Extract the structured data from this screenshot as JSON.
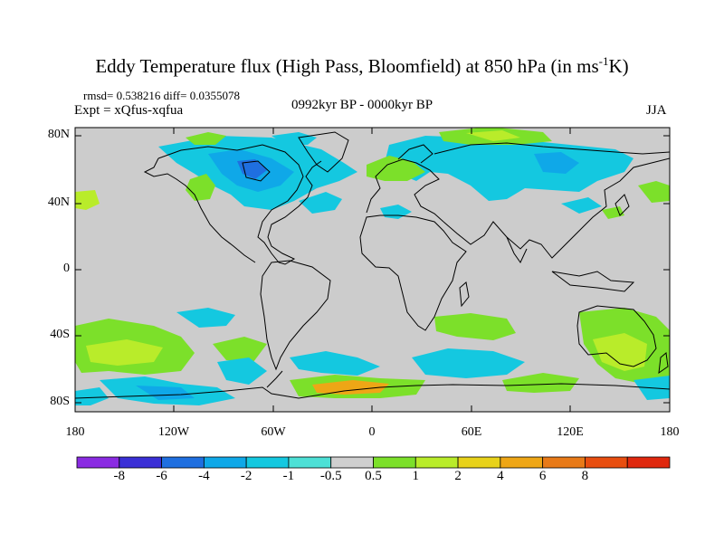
{
  "title": {
    "main": "Eddy Temperature flux (High Pass, Bloomfield) at 850 hPa (in ms",
    "sup": "-1",
    "tail": "K)"
  },
  "stats_line": "rmsd= 0.538216 diff= 0.0355078",
  "expt_line": "Expt = xQfus-xqfua",
  "period_line": "0992kyr BP - 0000kyr BP",
  "season": "JJA",
  "axes": {
    "y_ticks": [
      "80N",
      "40N",
      "0",
      "40S",
      "80S"
    ],
    "x_ticks": [
      "180",
      "120W",
      "60W",
      "0",
      "60E",
      "120E",
      "180"
    ]
  },
  "colorbar": {
    "colors": [
      "#8a2be2",
      "#3a2fd6",
      "#1f6fe0",
      "#0fa8e8",
      "#14c8e0",
      "#4de0d6",
      "#cfcfcf",
      "#7ce02a",
      "#b9ec2a",
      "#e8d21a",
      "#eea616",
      "#e87a18",
      "#e84e10",
      "#e0280e"
    ],
    "labels": [
      "-8",
      "-6",
      "-4",
      "-2",
      "-1",
      "-0.5",
      "0.5",
      "1",
      "2",
      "4",
      "6",
      "8"
    ]
  },
  "colors": {
    "land_background": "#cccccc",
    "coast": "#000000"
  }
}
